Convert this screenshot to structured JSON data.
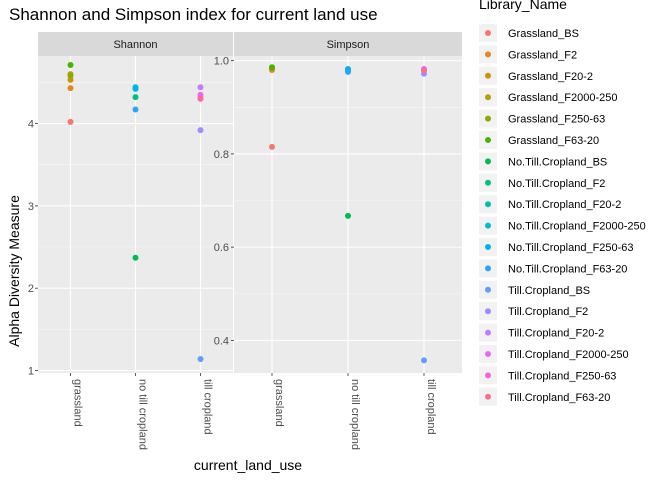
{
  "chart_data": {
    "type": "scatter",
    "title": "Shannon and Simpson index for current land use",
    "xlabel": "current_land_use",
    "ylabel": "Alpha Diversity Measure",
    "categories": [
      "grassland",
      "no till cropland",
      "till cropland"
    ],
    "legend": {
      "title": "Library_Name",
      "position": "right",
      "entries": [
        {
          "name": "Grassland_BS",
          "color": "#F8766D"
        },
        {
          "name": "Grassland_F2",
          "color": "#E7851E"
        },
        {
          "name": "Grassland_F20-2",
          "color": "#D09400"
        },
        {
          "name": "Grassland_F2000-250",
          "color": "#B2A100"
        },
        {
          "name": "Grassland_F250-63",
          "color": "#89AC00"
        },
        {
          "name": "Grassland_F63-20",
          "color": "#45B500"
        },
        {
          "name": "No.Till.Cropland_BS",
          "color": "#00BC51"
        },
        {
          "name": "No.Till.Cropland_F2",
          "color": "#00C087"
        },
        {
          "name": "No.Till.Cropland_F20-2",
          "color": "#00C0B2"
        },
        {
          "name": "No.Till.Cropland_F2000-250",
          "color": "#00BCD6"
        },
        {
          "name": "No.Till.Cropland_F250-63",
          "color": "#00B3F2"
        },
        {
          "name": "No.Till.Cropland_F63-20",
          "color": "#29A3FF"
        },
        {
          "name": "Till.Cropland_BS",
          "color": "#619CFF"
        },
        {
          "name": "Till.Cropland_F2",
          "color": "#9C8DFF"
        },
        {
          "name": "Till.Cropland_F20-2",
          "color": "#C77CFF"
        },
        {
          "name": "Till.Cropland_F2000-250",
          "color": "#E46DF5"
        },
        {
          "name": "Till.Cropland_F250-63",
          "color": "#F564E3"
        },
        {
          "name": "Till.Cropland_F63-20",
          "color": "#FF6C91"
        }
      ]
    },
    "panels": [
      {
        "name": "Shannon",
        "ylim": [
          0.97,
          4.82
        ],
        "yticks": [
          1,
          2,
          3,
          4
        ],
        "grid": true,
        "points": [
          {
            "x": "grassland",
            "y": 4.02,
            "series": "Grassland_BS"
          },
          {
            "x": "grassland",
            "y": 4.43,
            "series": "Grassland_F2"
          },
          {
            "x": "grassland",
            "y": 4.53,
            "series": "Grassland_F20-2"
          },
          {
            "x": "grassland",
            "y": 4.6,
            "series": "Grassland_F2000-250"
          },
          {
            "x": "grassland",
            "y": 4.58,
            "series": "Grassland_F250-63"
          },
          {
            "x": "grassland",
            "y": 4.71,
            "series": "Grassland_F63-20"
          },
          {
            "x": "no till cropland",
            "y": 2.37,
            "series": "No.Till.Cropland_BS"
          },
          {
            "x": "no till cropland",
            "y": 4.32,
            "series": "No.Till.Cropland_F2"
          },
          {
            "x": "no till cropland",
            "y": 4.43,
            "series": "No.Till.Cropland_F20-2"
          },
          {
            "x": "no till cropland",
            "y": 4.44,
            "series": "No.Till.Cropland_F2000-250"
          },
          {
            "x": "no till cropland",
            "y": 4.42,
            "series": "No.Till.Cropland_F250-63"
          },
          {
            "x": "no till cropland",
            "y": 4.17,
            "series": "No.Till.Cropland_F63-20"
          },
          {
            "x": "till cropland",
            "y": 1.14,
            "series": "Till.Cropland_BS"
          },
          {
            "x": "till cropland",
            "y": 3.92,
            "series": "Till.Cropland_F2"
          },
          {
            "x": "till cropland",
            "y": 4.44,
            "series": "Till.Cropland_F20-2"
          },
          {
            "x": "till cropland",
            "y": 4.35,
            "series": "Till.Cropland_F2000-250"
          },
          {
            "x": "till cropland",
            "y": 4.32,
            "series": "Till.Cropland_F250-63"
          },
          {
            "x": "till cropland",
            "y": 4.3,
            "series": "Till.Cropland_F63-20"
          }
        ]
      },
      {
        "name": "Simpson",
        "ylim": [
          0.33,
          1.01
        ],
        "yticks": [
          0.4,
          0.6,
          0.8,
          1.0
        ],
        "ytick_labels": [
          "0.4",
          "0.6",
          "0.8",
          "1.0"
        ],
        "grid": true,
        "points": [
          {
            "x": "grassland",
            "y": 0.815,
            "series": "Grassland_BS"
          },
          {
            "x": "grassland",
            "y": 0.98,
            "series": "Grassland_F2"
          },
          {
            "x": "grassland",
            "y": 0.983,
            "series": "Grassland_F20-2"
          },
          {
            "x": "grassland",
            "y": 0.985,
            "series": "Grassland_F2000-250"
          },
          {
            "x": "grassland",
            "y": 0.984,
            "series": "Grassland_F250-63"
          },
          {
            "x": "grassland",
            "y": 0.986,
            "series": "Grassland_F63-20"
          },
          {
            "x": "no till cropland",
            "y": 0.667,
            "series": "No.Till.Cropland_BS"
          },
          {
            "x": "no till cropland",
            "y": 0.978,
            "series": "No.Till.Cropland_F2"
          },
          {
            "x": "no till cropland",
            "y": 0.98,
            "series": "No.Till.Cropland_F20-2"
          },
          {
            "x": "no till cropland",
            "y": 0.982,
            "series": "No.Till.Cropland_F2000-250"
          },
          {
            "x": "no till cropland",
            "y": 0.981,
            "series": "No.Till.Cropland_F250-63"
          },
          {
            "x": "no till cropland",
            "y": 0.976,
            "series": "No.Till.Cropland_F63-20"
          },
          {
            "x": "till cropland",
            "y": 0.357,
            "series": "Till.Cropland_BS"
          },
          {
            "x": "till cropland",
            "y": 0.972,
            "series": "Till.Cropland_F2"
          },
          {
            "x": "till cropland",
            "y": 0.982,
            "series": "Till.Cropland_F20-2"
          },
          {
            "x": "till cropland",
            "y": 0.981,
            "series": "Till.Cropland_F2000-250"
          },
          {
            "x": "till cropland",
            "y": 0.98,
            "series": "Till.Cropland_F250-63"
          },
          {
            "x": "till cropland",
            "y": 0.979,
            "series": "Till.Cropland_F63-20"
          }
        ]
      }
    ]
  }
}
